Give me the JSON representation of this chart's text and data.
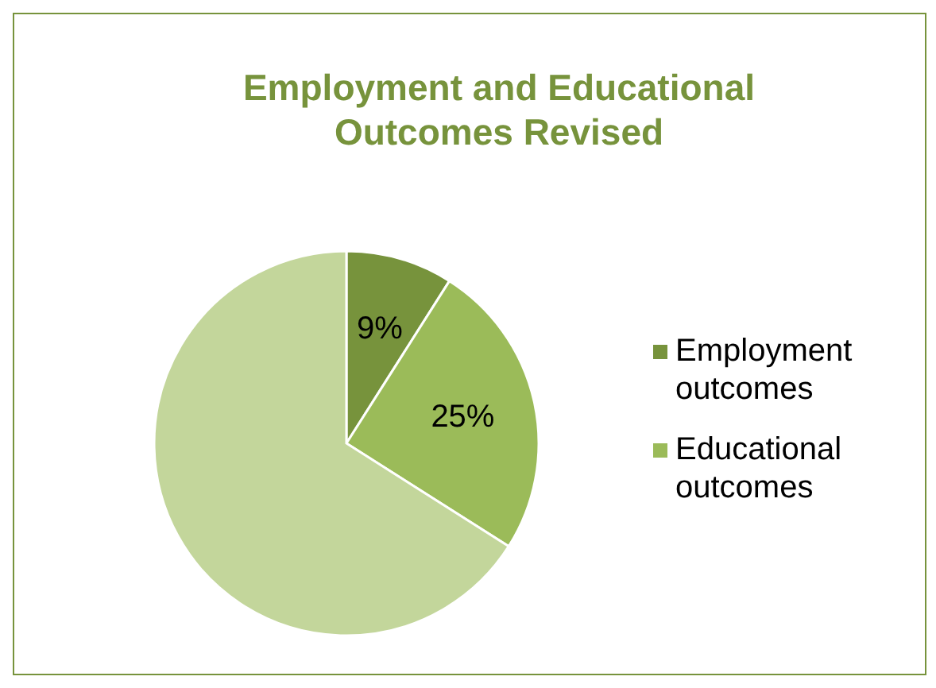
{
  "chart_data": {
    "type": "pie",
    "title": "Employment and Educational Outcomes Revised",
    "categories": [
      "Employment outcomes",
      "Educational outcomes",
      null
    ],
    "values": [
      9,
      25,
      66
    ],
    "colors": [
      "#77933c",
      "#9bbb59",
      "#c3d69b"
    ],
    "value_labels": [
      "9%",
      "25%",
      null
    ],
    "legend": "right"
  }
}
